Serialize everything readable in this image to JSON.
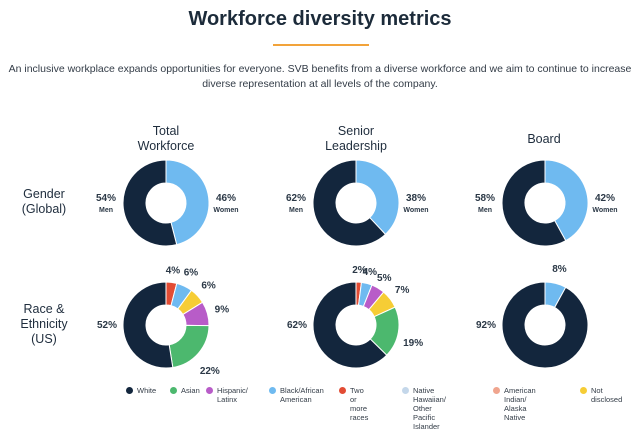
{
  "page": {
    "title": "Workforce diversity metrics",
    "intro_line1": "An inclusive workplace expands opportunities for everyone. SVB benefits from a diverse workforce and we aim to continue to increase",
    "intro_line2": "diverse representation at all levels of the company.",
    "accent_color": "#f2a33a"
  },
  "columns": {
    "total_line1": "Total",
    "total_line2": "Workforce",
    "senior_line1": "Senior",
    "senior_line2": "Leadership",
    "board": "Board"
  },
  "rows": {
    "gender_line1": "Gender",
    "gender_line2": "(Global)",
    "race_line1": "Race &",
    "race_line2": "Ethnicity",
    "race_line3": "(US)"
  },
  "colors": {
    "White": "#13263d",
    "Asian": "#4cb86e",
    "Hispanic": "#b85cc8",
    "Black": "#6fbaf0",
    "Two": "#e24c34",
    "Hawaiian": "#c4d7ea",
    "Indian": "#f0a58e",
    "Notdisclosed": "#f6cd35"
  },
  "legend": [
    {
      "key": "White",
      "line1": "White",
      "line2": "",
      "line3": ""
    },
    {
      "key": "Asian",
      "line1": "Asian",
      "line2": "",
      "line3": ""
    },
    {
      "key": "Hispanic",
      "line1": "Hispanic/",
      "line2": "Latinx",
      "line3": ""
    },
    {
      "key": "Black",
      "line1": "Black/African",
      "line2": "American",
      "line3": ""
    },
    {
      "key": "Two",
      "line1": "Two or",
      "line2": "more races",
      "line3": ""
    },
    {
      "key": "Hawaiian",
      "line1": "Native Hawaiian/",
      "line2": "Other Pacific",
      "line3": "Islander"
    },
    {
      "key": "Indian",
      "line1": "American Indian/",
      "line2": "Alaska Native",
      "line3": ""
    },
    {
      "key": "Notdisclosed",
      "line1": "Not",
      "line2": "disclosed",
      "line3": ""
    }
  ],
  "chart_data": [
    {
      "type": "pie",
      "id": "gender-total",
      "title": "Total Workforce",
      "row": "Gender (Global)",
      "slices": [
        {
          "label": "Women",
          "value": 46,
          "text": "46%",
          "key": "Black"
        },
        {
          "label": "Men",
          "value": 54,
          "text": "54%",
          "key": "White"
        }
      ]
    },
    {
      "type": "pie",
      "id": "gender-senior",
      "title": "Senior Leadership",
      "row": "Gender (Global)",
      "slices": [
        {
          "label": "Women",
          "value": 38,
          "text": "38%",
          "key": "Black"
        },
        {
          "label": "Men",
          "value": 62,
          "text": "62%",
          "key": "White"
        }
      ]
    },
    {
      "type": "pie",
      "id": "gender-board",
      "title": "Board",
      "row": "Gender (Global)",
      "slices": [
        {
          "label": "Women",
          "value": 42,
          "text": "42%",
          "key": "Black"
        },
        {
          "label": "Men",
          "value": 58,
          "text": "58%",
          "key": "White"
        }
      ]
    },
    {
      "type": "pie",
      "id": "race-total",
      "title": "Total Workforce",
      "row": "Race & Ethnicity (US)",
      "slices": [
        {
          "label": "Two or more races",
          "value": 4,
          "text": "4%",
          "key": "Two"
        },
        {
          "label": "Black/African American",
          "value": 6,
          "text": "6%",
          "key": "Black"
        },
        {
          "label": "Not disclosed",
          "value": 6,
          "text": "6%",
          "key": "Notdisclosed"
        },
        {
          "label": "Hispanic/Latinx",
          "value": 9,
          "text": "9%",
          "key": "Hispanic"
        },
        {
          "label": "Asian",
          "value": 22,
          "text": "22%",
          "key": "Asian"
        },
        {
          "label": "White",
          "value": 52,
          "text": "52%",
          "key": "White"
        }
      ]
    },
    {
      "type": "pie",
      "id": "race-senior",
      "title": "Senior Leadership",
      "row": "Race & Ethnicity (US)",
      "slices": [
        {
          "label": "Two or more races",
          "value": 2,
          "text": "2%",
          "key": "Two"
        },
        {
          "label": "Black/African American",
          "value": 4,
          "text": "4%",
          "key": "Black"
        },
        {
          "label": "Hispanic/Latinx",
          "value": 5,
          "text": "5%",
          "key": "Hispanic"
        },
        {
          "label": "Not disclosed",
          "value": 7,
          "text": "7%",
          "key": "Notdisclosed"
        },
        {
          "label": "Asian",
          "value": 19,
          "text": "19%",
          "key": "Asian"
        },
        {
          "label": "White",
          "value": 62,
          "text": "62%",
          "key": "White"
        }
      ]
    },
    {
      "type": "pie",
      "id": "race-board",
      "title": "Board",
      "row": "Race & Ethnicity (US)",
      "slices": [
        {
          "label": "Black/African American",
          "value": 8,
          "text": "8%",
          "key": "Black"
        },
        {
          "label": "White",
          "value": 92,
          "text": "92%",
          "key": "White"
        }
      ]
    }
  ]
}
